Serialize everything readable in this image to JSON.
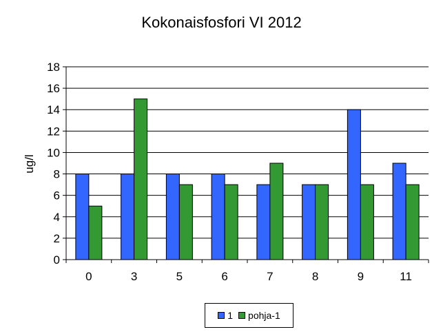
{
  "colors": {
    "series1": "#3366ff",
    "series2": "#339933"
  },
  "chart_data": {
    "type": "bar",
    "title": "Kokonaisfosfori  VI 2012",
    "xlabel": "",
    "ylabel": "ug/l",
    "ylim": [
      0,
      18
    ],
    "yticks": [
      0,
      2,
      4,
      6,
      8,
      10,
      12,
      14,
      16,
      18
    ],
    "grid": true,
    "legend_position": "bottom",
    "categories": [
      "0",
      "3",
      "5",
      "6",
      "7",
      "8",
      "9",
      "11"
    ],
    "series": [
      {
        "name": "1",
        "values": [
          8,
          8,
          8,
          8,
          7,
          7,
          14,
          9
        ]
      },
      {
        "name": "pohja-1",
        "values": [
          5,
          15,
          7,
          7,
          9,
          7,
          7,
          7
        ]
      }
    ]
  }
}
